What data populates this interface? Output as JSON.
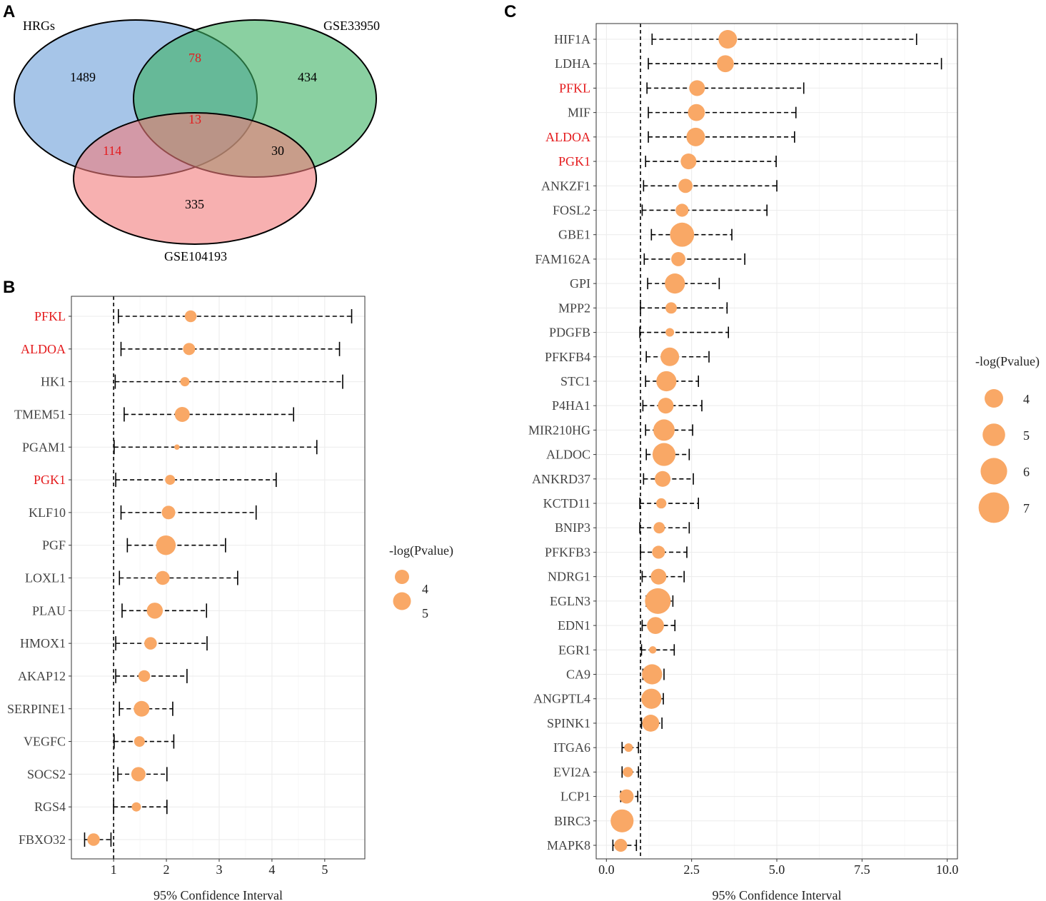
{
  "panels": {
    "a": "A",
    "b": "B",
    "c": "C"
  },
  "colors": {
    "point": "#f9a866",
    "highlight": "#e41a1c",
    "hrgs": "#6a9ed8",
    "gse33950": "#3cb163",
    "gse104193": "#f27c7c"
  },
  "venn": {
    "sets": [
      "HRGs",
      "GSE33950",
      "GSE104193"
    ],
    "regions": {
      "hrgs_only": "1489",
      "gse33950_only": "434",
      "gse104193_only": "335",
      "hrgs_gse33950": "78",
      "hrgs_gse104193": "114",
      "gse33950_gse104193": "30",
      "all": "13"
    }
  },
  "chart_data": [
    {
      "type": "scatter",
      "subtype": "forest",
      "panel": "B",
      "xlabel": "95% Confidence Interval",
      "xlim": [
        0.2,
        5.76
      ],
      "xticks": [
        1,
        2,
        3,
        4,
        5
      ],
      "tick_labels": [
        "1",
        "2",
        "3",
        "4",
        "5"
      ],
      "reference_line": 1,
      "legend": {
        "title": "-log(Pvalue)",
        "entries": [
          4,
          5
        ],
        "placement": "right"
      },
      "genes": [
        "PFKL",
        "ALDOA",
        "HK1",
        "TMEM51",
        "PGAM1",
        "PGK1",
        "KLF10",
        "PGF",
        "LOXL1",
        "PLAU",
        "HMOX1",
        "AKAP12",
        "SERPINE1",
        "VEGFC",
        "SOCS2",
        "RGS4",
        "FBXO32"
      ],
      "highlight": [
        "PFKL",
        "ALDOA",
        "PGK1"
      ],
      "estimate": [
        2.46,
        2.43,
        2.35,
        2.3,
        2.2,
        2.07,
        2.04,
        1.99,
        1.93,
        1.78,
        1.7,
        1.58,
        1.53,
        1.49,
        1.47,
        1.43,
        0.62
      ],
      "lower": [
        1.09,
        1.14,
        1.03,
        1.2,
        1.01,
        1.04,
        1.14,
        1.26,
        1.11,
        1.16,
        1.04,
        1.04,
        1.11,
        1.01,
        1.08,
        1.0,
        0.45
      ],
      "upper": [
        5.51,
        5.28,
        5.34,
        4.41,
        4.85,
        4.08,
        3.7,
        3.12,
        3.35,
        2.76,
        2.77,
        2.39,
        2.12,
        2.14,
        2.01,
        2.01,
        0.95
      ],
      "neglogp": [
        3.3,
        3.4,
        2.6,
        4.2,
        1.5,
        2.8,
        3.8,
        5.5,
        3.9,
        4.5,
        3.5,
        3.3,
        4.4,
        3.0,
        4.0,
        2.6,
        3.5
      ]
    },
    {
      "type": "scatter",
      "subtype": "forest",
      "panel": "C",
      "xlabel": "95% Confidence Interval",
      "xlim": [
        -0.3,
        10.3
      ],
      "xticks": [
        0,
        2.5,
        5,
        7.5,
        10
      ],
      "tick_labels": [
        "0.0",
        "2.5",
        "5.0",
        "7.5",
        "10.0"
      ],
      "reference_line": 1,
      "legend": {
        "title": "-log(Pvalue)",
        "entries": [
          4,
          5,
          6,
          7
        ],
        "placement": "right"
      },
      "genes": [
        "HIF1A",
        "LDHA",
        "PFKL",
        "MIF",
        "ALDOA",
        "PGK1",
        "ANKZF1",
        "FOSL2",
        "GBE1",
        "FAM162A",
        "GPI",
        "MPP2",
        "PDGFB",
        "PFKFB4",
        "STC1",
        "P4HA1",
        "MIR210HG",
        "ALDOC",
        "ANKRD37",
        "KCTD11",
        "BNIP3",
        "PFKFB3",
        "NDRG1",
        "EGLN3",
        "EDN1",
        "EGR1",
        "CA9",
        "ANGPTL4",
        "SPINK1",
        "ITGA6",
        "EVI2A",
        "LCP1",
        "BIRC3",
        "MAPK8"
      ],
      "highlight": [
        "PFKL",
        "ALDOA",
        "PGK1"
      ],
      "estimate": [
        3.56,
        3.49,
        2.66,
        2.64,
        2.62,
        2.41,
        2.32,
        2.22,
        2.22,
        2.11,
        2.01,
        1.9,
        1.86,
        1.86,
        1.76,
        1.74,
        1.69,
        1.69,
        1.65,
        1.61,
        1.55,
        1.53,
        1.53,
        1.51,
        1.44,
        1.36,
        1.34,
        1.32,
        1.3,
        0.65,
        0.63,
        0.59,
        0.46,
        0.42
      ],
      "lower": [
        1.34,
        1.23,
        1.19,
        1.23,
        1.23,
        1.15,
        1.09,
        1.05,
        1.32,
        1.11,
        1.21,
        1.0,
        0.98,
        1.17,
        1.15,
        1.07,
        1.15,
        1.17,
        1.09,
        0.98,
        0.98,
        1.0,
        1.05,
        1.17,
        1.05,
        1.03,
        1.07,
        1.11,
        1.03,
        0.46,
        0.46,
        0.42,
        0.21,
        0.19
      ],
      "upper": [
        9.1,
        9.83,
        5.79,
        5.56,
        5.52,
        4.98,
        5.0,
        4.71,
        3.68,
        4.06,
        3.31,
        3.54,
        3.58,
        3.01,
        2.7,
        2.8,
        2.53,
        2.43,
        2.55,
        2.7,
        2.43,
        2.36,
        2.28,
        1.95,
        2.01,
        1.99,
        1.69,
        1.67,
        1.63,
        0.94,
        0.94,
        0.92,
        0.73,
        0.88
      ],
      "neglogp": [
        4.0,
        3.6,
        3.3,
        3.6,
        4.0,
        3.3,
        2.9,
        2.6,
        5.4,
        2.9,
        4.4,
        2.2,
        1.5,
        4.0,
        4.4,
        3.3,
        4.7,
        5.1,
        3.3,
        1.9,
        2.2,
        2.6,
        3.3,
        5.8,
        3.6,
        1.2,
        4.4,
        4.4,
        3.6,
        1.5,
        1.9,
        2.9,
        5.1,
        2.6
      ]
    }
  ]
}
